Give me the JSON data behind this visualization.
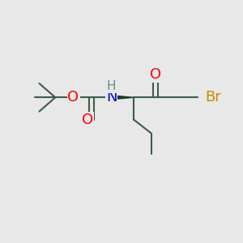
{
  "background_color": "#e8e8e8",
  "bond_color": "#3d5c4a",
  "bond_width": 1.5,
  "wedge_color": "#1a3a2a",
  "O_color": "#ff0000",
  "N_color": "#0000cc",
  "Br_color": "#cc8800",
  "H_color": "#6a8a8a",
  "font_size": 13,
  "fig_size": [
    3.0,
    3.0
  ],
  "dpi": 100,
  "xlim": [
    0,
    12
  ],
  "ylim": [
    0,
    10
  ]
}
